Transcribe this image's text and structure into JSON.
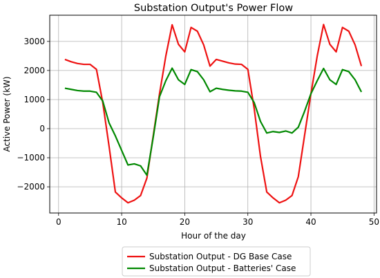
{
  "chart_data": {
    "type": "line",
    "title": "Substation Output's Power Flow",
    "xlabel": "Hour of the day",
    "ylabel": "Active Power (kW)",
    "xlim": [
      -1.4,
      50.4
    ],
    "ylim": [
      -2900,
      3900
    ],
    "xticks": [
      0,
      10,
      20,
      30,
      40,
      50
    ],
    "yticks": [
      -2000,
      -1000,
      0,
      1000,
      2000,
      3000
    ],
    "grid": true,
    "legend_position": "below",
    "x": [
      1,
      2,
      3,
      4,
      5,
      6,
      7,
      8,
      9,
      10,
      11,
      12,
      13,
      14,
      15,
      16,
      17,
      18,
      19,
      20,
      21,
      22,
      23,
      24,
      25,
      26,
      27,
      28,
      29,
      30,
      31,
      32,
      33,
      34,
      35,
      36,
      37,
      38,
      39,
      40,
      41,
      42,
      43,
      44,
      45,
      46,
      47,
      48
    ],
    "series": [
      {
        "name": "Substation Output - DG Base Case",
        "color": "#ee1111",
        "values": [
          2380,
          2300,
          2240,
          2210,
          2210,
          2040,
          900,
          -600,
          -2180,
          -2380,
          -2550,
          -2460,
          -2300,
          -1700,
          -250,
          1200,
          2500,
          3570,
          2900,
          2640,
          3480,
          3350,
          2880,
          2150,
          2380,
          2320,
          2260,
          2220,
          2210,
          2040,
          700,
          -950,
          -2180,
          -2380,
          -2550,
          -2460,
          -2300,
          -1650,
          -220,
          1200,
          2500,
          3580,
          2900,
          2640,
          3480,
          3350,
          2880,
          2150
        ]
      },
      {
        "name": "Substation Output - Batteries' Case",
        "color": "#008800",
        "values": [
          1390,
          1350,
          1310,
          1290,
          1290,
          1250,
          950,
          200,
          -250,
          -750,
          -1250,
          -1210,
          -1280,
          -1600,
          -300,
          1100,
          1650,
          2080,
          1680,
          1520,
          2030,
          1960,
          1680,
          1270,
          1390,
          1350,
          1320,
          1300,
          1290,
          1250,
          900,
          250,
          -150,
          -100,
          -130,
          -80,
          -150,
          50,
          600,
          1200,
          1650,
          2070,
          1680,
          1520,
          2030,
          1960,
          1680,
          1260
        ]
      }
    ]
  }
}
